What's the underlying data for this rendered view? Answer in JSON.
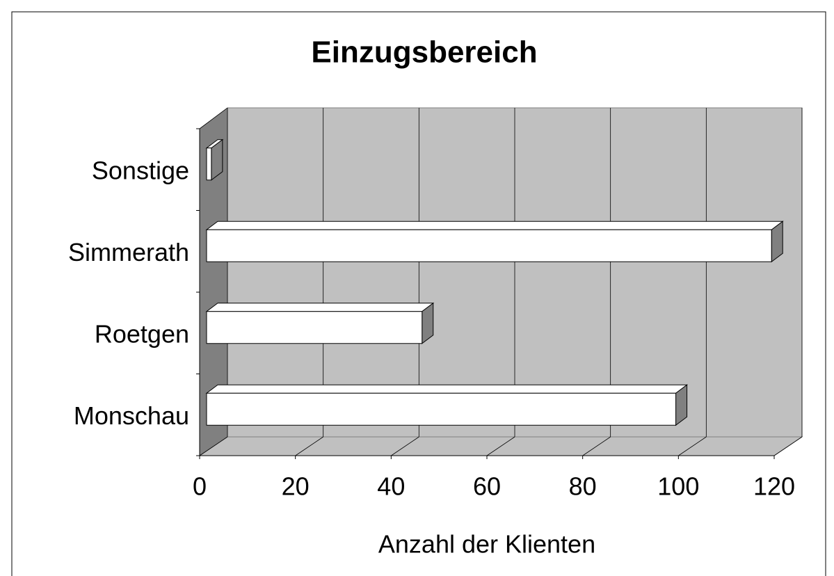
{
  "chart_data": {
    "type": "bar3d_horizontal",
    "title": "Einzugsbereich",
    "categories": [
      "Monschau",
      "Roetgen",
      "Simmerath",
      "Sonstige"
    ],
    "values": [
      98,
      45,
      118,
      1
    ],
    "color": "#ffffff",
    "xlabel": "Anzahl der Klienten",
    "xlim": [
      0,
      120
    ],
    "xticks": [
      0,
      20,
      40,
      60,
      80,
      100,
      120
    ],
    "grid": true
  }
}
